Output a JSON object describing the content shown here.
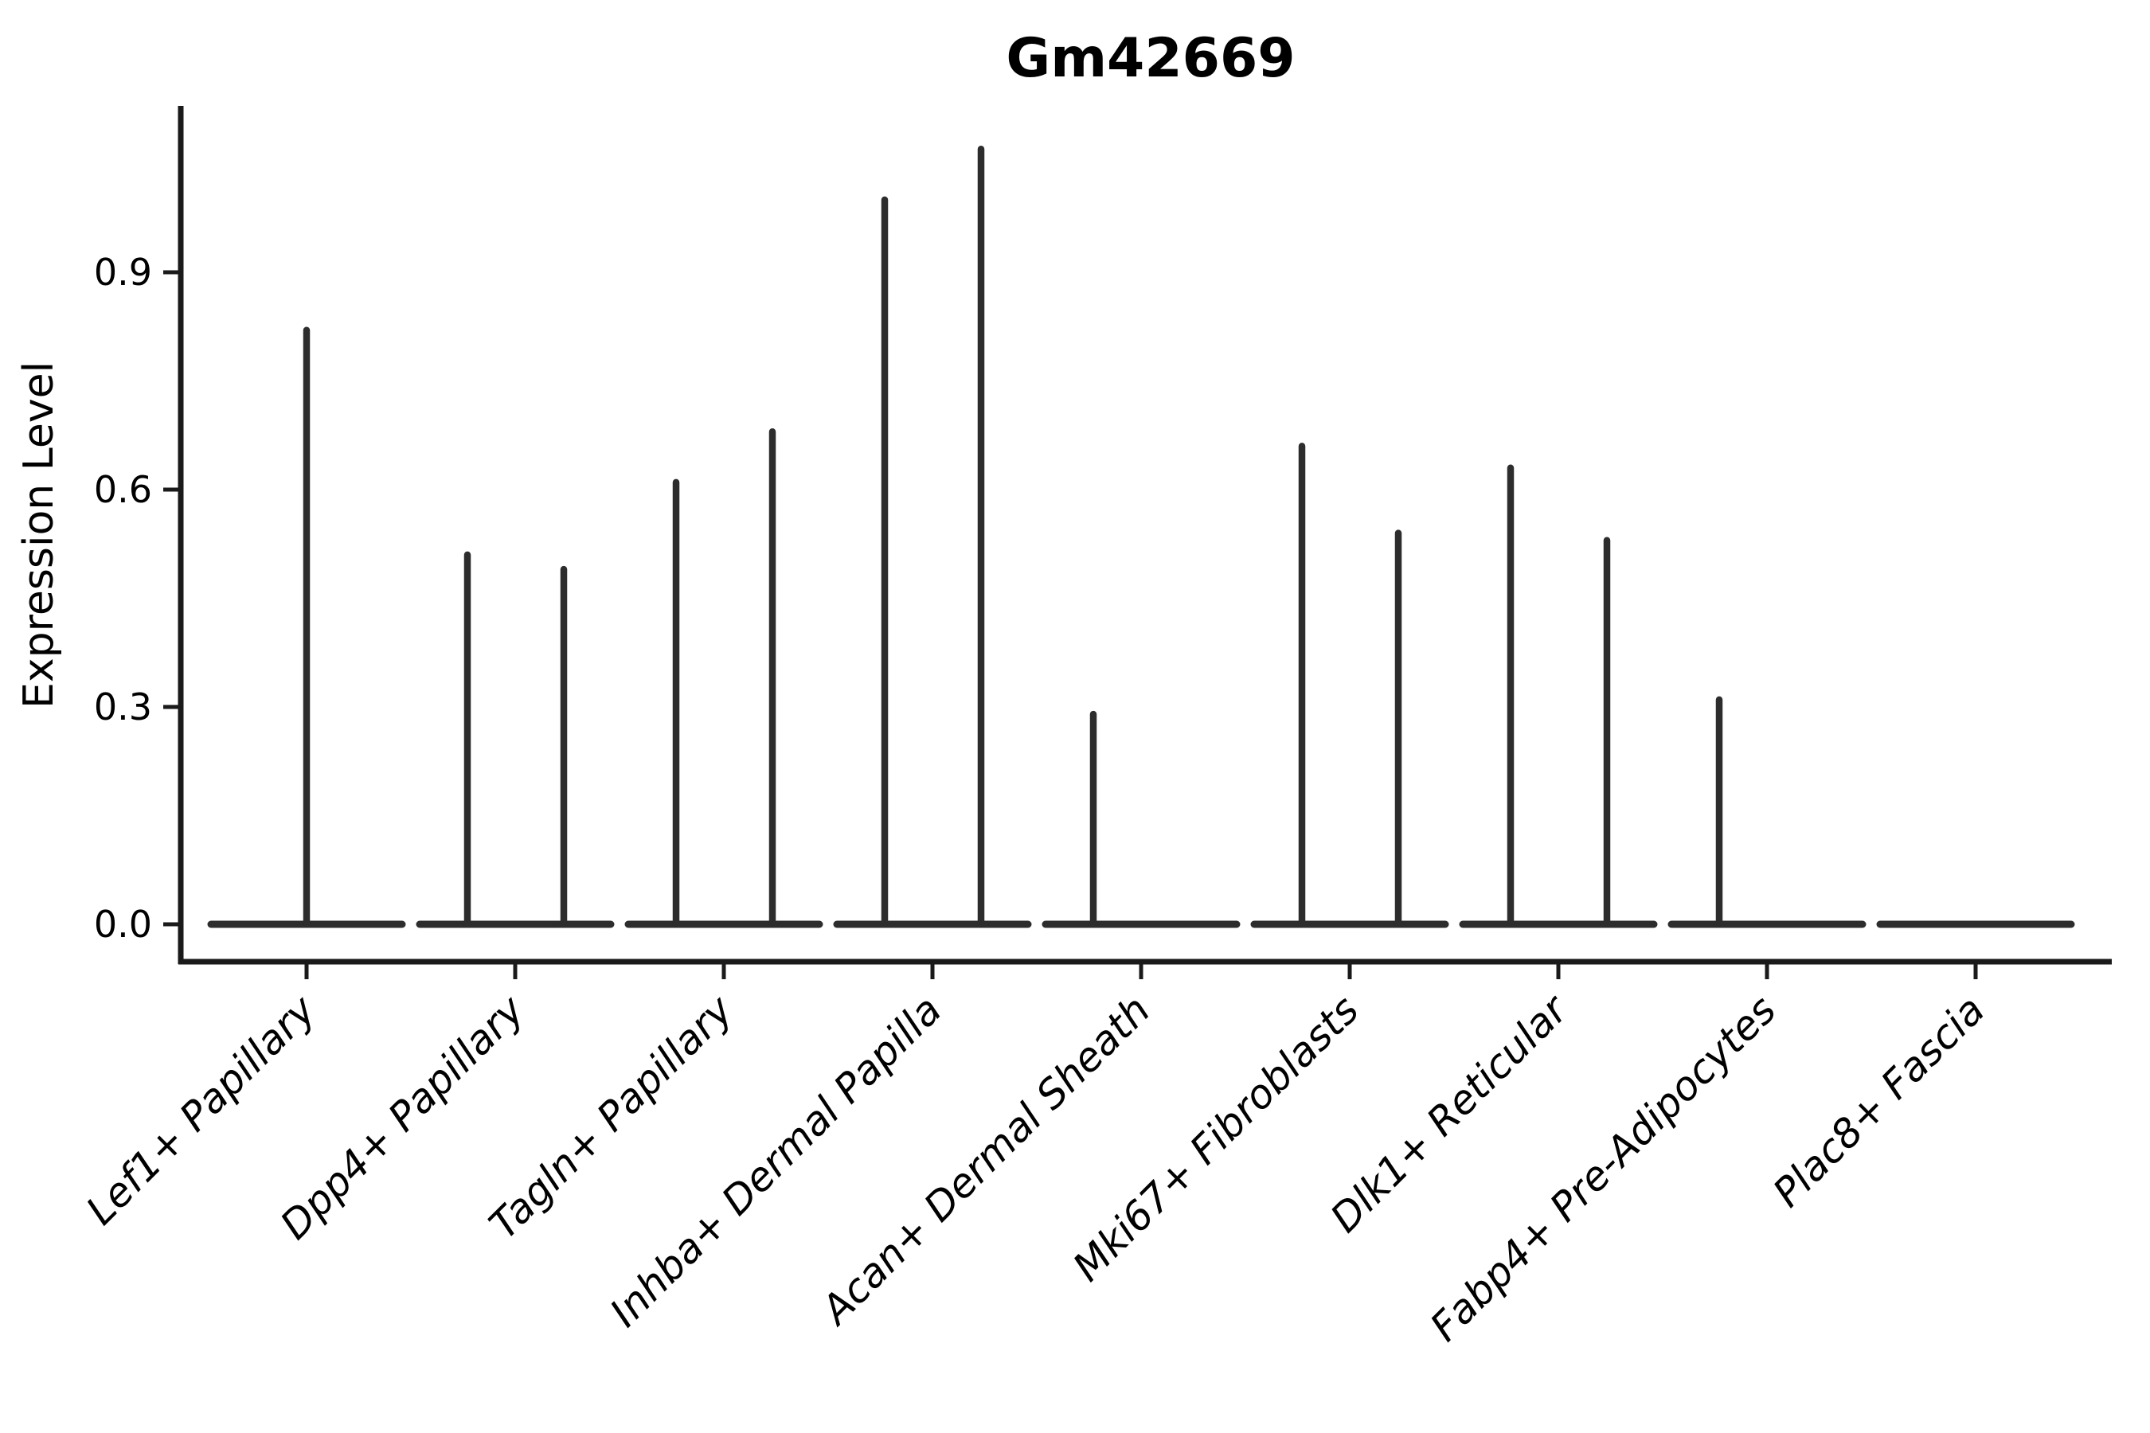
{
  "chart": {
    "title": "Gm42669",
    "ylabel": "Expression Level"
  },
  "chart_data": {
    "type": "violin",
    "title": "Gm42669",
    "xlabel": "",
    "ylabel": "Expression Level",
    "grid": false,
    "legend": "none",
    "ylim": [
      -0.05,
      1.14
    ],
    "yticks": [
      0.0,
      0.3,
      0.6,
      0.9
    ],
    "ytick_labels": [
      "0.0",
      "0.3",
      "0.6",
      "0.9"
    ],
    "categories": [
      "Lef1+ Papillary",
      "Dpp4+ Papillary",
      "Tagln+ Papillary",
      "Inhba+ Dermal Papilla",
      "Acan+ Dermal Sheath",
      "Mki67+ Fibroblasts",
      "Dlk1+ Reticular",
      "Fabp4+ Pre-Adipocytes",
      "Plac8+ Fascia"
    ],
    "series": [
      {
        "category": "Lef1+ Papillary",
        "spikes": [
          {
            "position": "center",
            "max": 0.82
          }
        ]
      },
      {
        "category": "Dpp4+ Papillary",
        "spikes": [
          {
            "position": "left",
            "max": 0.51
          },
          {
            "position": "right",
            "max": 0.49
          }
        ]
      },
      {
        "category": "Tagln+ Papillary",
        "spikes": [
          {
            "position": "left",
            "max": 0.61
          },
          {
            "position": "right",
            "max": 0.68
          }
        ]
      },
      {
        "category": "Inhba+ Dermal Papilla",
        "spikes": [
          {
            "position": "left",
            "max": 1.0
          },
          {
            "position": "right",
            "max": 1.07
          }
        ]
      },
      {
        "category": "Acan+ Dermal Sheath",
        "spikes": [
          {
            "position": "left",
            "max": 0.29
          }
        ]
      },
      {
        "category": "Mki67+ Fibroblasts",
        "spikes": [
          {
            "position": "left",
            "max": 0.66
          },
          {
            "position": "right",
            "max": 0.54
          }
        ]
      },
      {
        "category": "Dlk1+ Reticular",
        "spikes": [
          {
            "position": "left",
            "max": 0.63
          },
          {
            "position": "right",
            "max": 0.53
          }
        ]
      },
      {
        "category": "Fabp4+ Pre-Adipocytes",
        "spikes": [
          {
            "position": "left",
            "max": 0.31
          }
        ]
      },
      {
        "category": "Plac8+ Fascia",
        "spikes": []
      }
    ],
    "baseline_value": 0.0,
    "violin_color": "#2d2d2d",
    "spine_color": "#1a1a1a",
    "text_color": "#000000"
  }
}
